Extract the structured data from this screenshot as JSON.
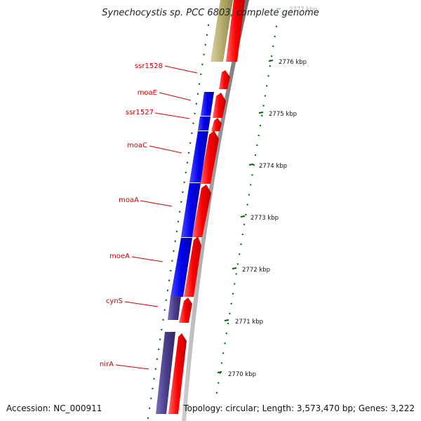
{
  "title": "Synechocystis sp. PCC 6803, complete genome",
  "accession": "Accession: NC_000911",
  "topology": "Topology: circular; Length: 3,573,470 bp; Genes: 3,222",
  "scale_ticks": [
    {
      "label": "2777 kbp",
      "faded": true
    },
    {
      "label": "2776 kbp",
      "faded": false
    },
    {
      "label": "2775 kbp",
      "faded": false
    },
    {
      "label": "2774 kbp",
      "faded": false
    },
    {
      "label": "2773 kbp",
      "faded": false
    },
    {
      "label": "2772 kbp",
      "faded": false
    },
    {
      "label": "2771 kbp",
      "faded": false
    },
    {
      "label": "2770 kbp",
      "faded": false
    }
  ],
  "gene_labels": [
    "ssr1528",
    "moaE",
    "ssr1527",
    "moaC",
    "moaA",
    "moeA",
    "cynS",
    "nirA"
  ],
  "colors": {
    "cds_forward": "#ff0000",
    "gene_reverse": "#0000ee",
    "gene_reverse_alt": "#4a3f8c",
    "gene_olive": "#b5ad6b",
    "backbone": "#9a9a9a",
    "tick": "#006400",
    "label": "#cc0000"
  }
}
